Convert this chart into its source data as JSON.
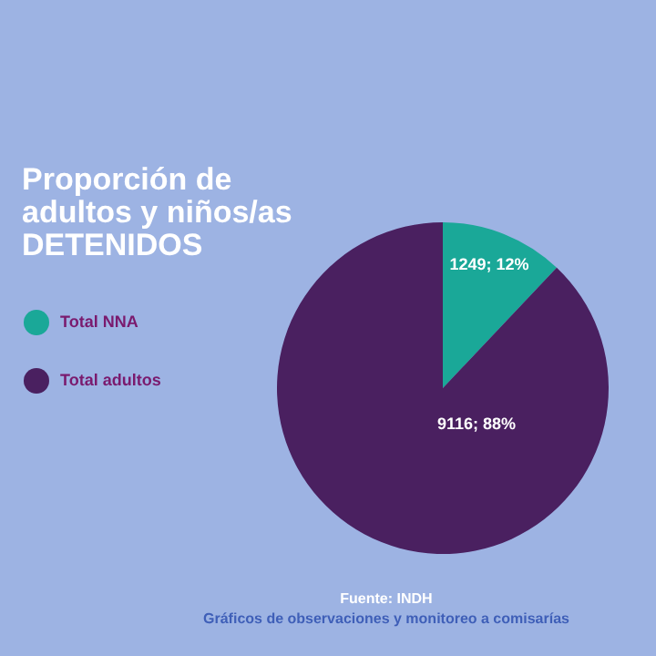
{
  "chart_data": {
    "type": "pie",
    "title": "Proporción de adultos y niños/as DETENIDOS",
    "categories": [
      "Total NNA",
      "Total adultos"
    ],
    "values": [
      1249,
      9116
    ],
    "colors": [
      "#1aa898",
      "#4a2060"
    ],
    "value_labels": [
      "1249; 12%",
      "9116; 88%"
    ],
    "legend": "left",
    "annotations": [
      "Fuente: INDH",
      "Gráficos de observaciones y monitoreo a comisarías"
    ]
  }
}
